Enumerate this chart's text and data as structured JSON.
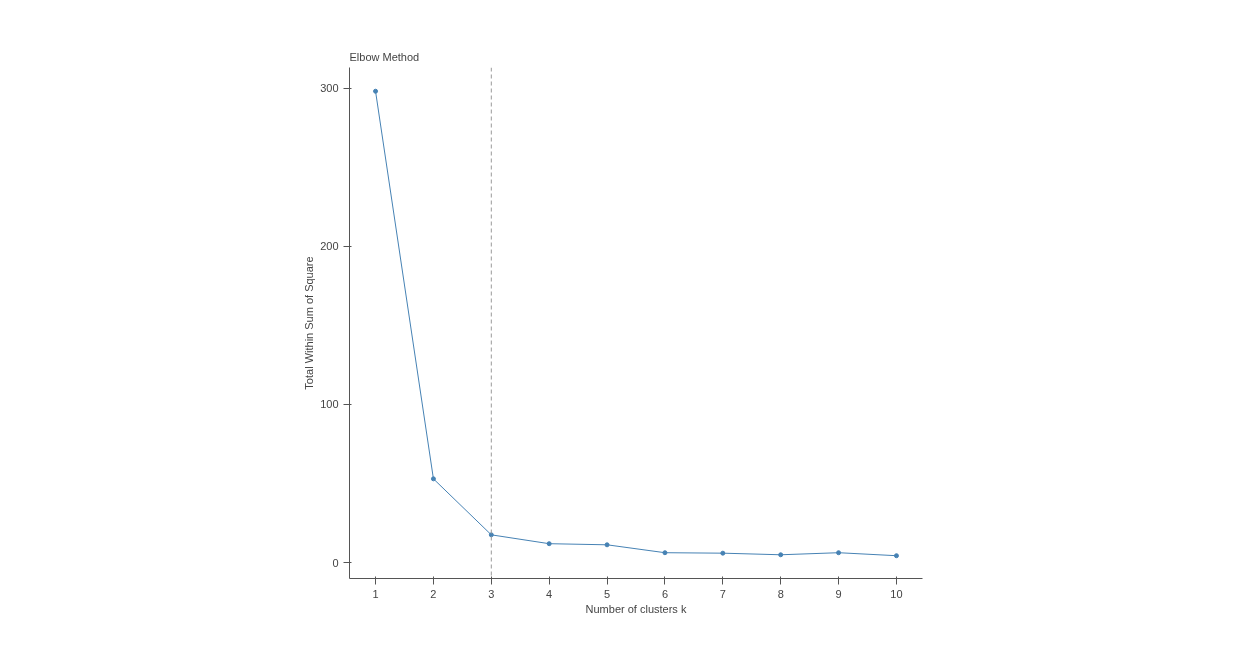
{
  "chart_data": {
    "type": "line",
    "title": "Elbow Method",
    "xlabel": "Number of clusters k",
    "ylabel": "Total Within Sum of Square",
    "x": [
      1,
      2,
      3,
      4,
      5,
      6,
      7,
      8,
      9,
      10
    ],
    "series": [
      {
        "color": "#4682b4",
        "values": [
          298,
          53,
          17.6,
          12,
          11.3,
          6.3,
          6,
          5,
          6.3,
          4.4
        ]
      }
    ],
    "xlim": [
      0.55,
      10.45
    ],
    "ylim": [
      -10,
      313
    ],
    "xticks": [
      1,
      2,
      3,
      4,
      5,
      6,
      7,
      8,
      9,
      10
    ],
    "yticks": [
      0,
      100,
      200,
      300
    ],
    "ref_lines": [
      {
        "axis": "x",
        "value": 3,
        "color": "#999999",
        "line_style": "dashed"
      }
    ],
    "marker": "circle",
    "line_style": "solid",
    "grid": false
  }
}
